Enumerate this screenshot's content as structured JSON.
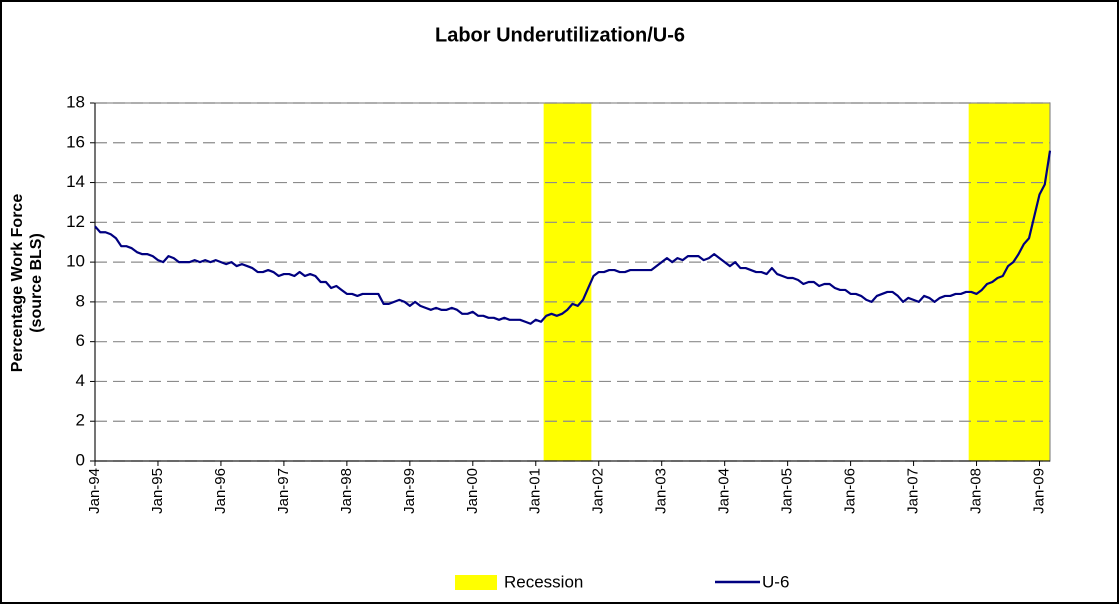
{
  "chart_data": {
    "type": "line",
    "title": "Labor Underutilization/U-6",
    "ylabel": [
      "Percentage Work Force",
      "(source BLS)"
    ],
    "categories": [
      "Jan-94",
      null,
      null,
      null,
      null,
      null,
      null,
      null,
      null,
      null,
      null,
      null,
      "Jan-95",
      null,
      null,
      null,
      null,
      null,
      null,
      null,
      null,
      null,
      null,
      null,
      "Jan-96",
      null,
      null,
      null,
      null,
      null,
      null,
      null,
      null,
      null,
      null,
      null,
      "Jan-97",
      null,
      null,
      null,
      null,
      null,
      null,
      null,
      null,
      null,
      null,
      null,
      "Jan-98",
      null,
      null,
      null,
      null,
      null,
      null,
      null,
      null,
      null,
      null,
      null,
      "Jan-99",
      null,
      null,
      null,
      null,
      null,
      null,
      null,
      null,
      null,
      null,
      null,
      "Jan-00",
      null,
      null,
      null,
      null,
      null,
      null,
      null,
      null,
      null,
      null,
      null,
      "Jan-01",
      null,
      null,
      null,
      null,
      null,
      null,
      null,
      null,
      null,
      null,
      null,
      "Jan-02",
      null,
      null,
      null,
      null,
      null,
      null,
      null,
      null,
      null,
      null,
      null,
      "Jan-03",
      null,
      null,
      null,
      null,
      null,
      null,
      null,
      null,
      null,
      null,
      null,
      "Jan-04",
      null,
      null,
      null,
      null,
      null,
      null,
      null,
      null,
      null,
      null,
      null,
      "Jan-05",
      null,
      null,
      null,
      null,
      null,
      null,
      null,
      null,
      null,
      null,
      null,
      "Jan-06",
      null,
      null,
      null,
      null,
      null,
      null,
      null,
      null,
      null,
      null,
      null,
      "Jan-07",
      null,
      null,
      null,
      null,
      null,
      null,
      null,
      null,
      null,
      null,
      null,
      "Jan-08",
      null,
      null,
      null,
      null,
      null,
      null,
      null,
      null,
      null,
      null,
      null,
      "Jan-09",
      null,
      null
    ],
    "series": [
      {
        "name": "Recession",
        "type": "bar",
        "color": "#ffff00",
        "values": [
          null,
          null,
          null,
          null,
          null,
          null,
          null,
          null,
          null,
          null,
          null,
          null,
          null,
          null,
          null,
          null,
          null,
          null,
          null,
          null,
          null,
          null,
          null,
          null,
          null,
          null,
          null,
          null,
          null,
          null,
          null,
          null,
          null,
          null,
          null,
          null,
          null,
          null,
          null,
          null,
          null,
          null,
          null,
          null,
          null,
          null,
          null,
          null,
          null,
          null,
          null,
          null,
          null,
          null,
          null,
          null,
          null,
          null,
          null,
          null,
          null,
          null,
          null,
          null,
          null,
          null,
          null,
          null,
          null,
          null,
          null,
          null,
          null,
          null,
          null,
          null,
          null,
          null,
          null,
          null,
          null,
          null,
          null,
          null,
          null,
          null,
          18,
          18,
          18,
          18,
          18,
          18,
          18,
          18,
          18,
          null,
          null,
          null,
          null,
          null,
          null,
          null,
          null,
          null,
          null,
          null,
          null,
          null,
          null,
          null,
          null,
          null,
          null,
          null,
          null,
          null,
          null,
          null,
          null,
          null,
          null,
          null,
          null,
          null,
          null,
          null,
          null,
          null,
          null,
          null,
          null,
          null,
          null,
          null,
          null,
          null,
          null,
          null,
          null,
          null,
          null,
          null,
          null,
          null,
          null,
          null,
          null,
          null,
          null,
          null,
          null,
          null,
          null,
          null,
          null,
          null,
          null,
          null,
          null,
          null,
          null,
          null,
          null,
          null,
          null,
          null,
          null,
          18,
          18,
          18,
          18,
          18,
          18,
          18,
          18,
          18,
          18,
          18,
          18,
          18,
          18,
          18,
          18
        ]
      },
      {
        "name": "U-6",
        "type": "line",
        "color": "#000080",
        "values": [
          11.8,
          11.5,
          11.5,
          11.4,
          11.2,
          10.8,
          10.8,
          10.7,
          10.5,
          10.4,
          10.4,
          10.3,
          10.1,
          10.0,
          10.3,
          10.2,
          10.0,
          10.0,
          10.0,
          10.1,
          10.0,
          10.1,
          10.0,
          10.1,
          10.0,
          9.9,
          10.0,
          9.8,
          9.9,
          9.8,
          9.7,
          9.5,
          9.5,
          9.6,
          9.5,
          9.3,
          9.4,
          9.4,
          9.3,
          9.5,
          9.3,
          9.4,
          9.3,
          9.0,
          9.0,
          8.7,
          8.8,
          8.6,
          8.4,
          8.4,
          8.3,
          8.4,
          8.4,
          8.4,
          8.4,
          7.9,
          7.9,
          8.0,
          8.1,
          8.0,
          7.8,
          8.0,
          7.8,
          7.7,
          7.6,
          7.7,
          7.6,
          7.6,
          7.7,
          7.6,
          7.4,
          7.4,
          7.5,
          7.3,
          7.3,
          7.2,
          7.2,
          7.1,
          7.2,
          7.1,
          7.1,
          7.1,
          7.0,
          6.9,
          7.1,
          7.0,
          7.3,
          7.4,
          7.3,
          7.4,
          7.6,
          7.9,
          7.8,
          8.1,
          8.7,
          9.3,
          9.5,
          9.5,
          9.6,
          9.6,
          9.5,
          9.5,
          9.6,
          9.6,
          9.6,
          9.6,
          9.6,
          9.8,
          10.0,
          10.2,
          10.0,
          10.2,
          10.1,
          10.3,
          10.3,
          10.3,
          10.1,
          10.2,
          10.4,
          10.2,
          10.0,
          9.8,
          10.0,
          9.7,
          9.7,
          9.6,
          9.5,
          9.5,
          9.4,
          9.7,
          9.4,
          9.3,
          9.2,
          9.2,
          9.1,
          8.9,
          9.0,
          9.0,
          8.8,
          8.9,
          8.9,
          8.7,
          8.6,
          8.6,
          8.4,
          8.4,
          8.3,
          8.1,
          8.0,
          8.3,
          8.4,
          8.5,
          8.5,
          8.3,
          8.0,
          8.2,
          8.1,
          8.0,
          8.3,
          8.2,
          8.0,
          8.2,
          8.3,
          8.3,
          8.4,
          8.4,
          8.5,
          8.5,
          8.4,
          8.6,
          8.9,
          9.0,
          9.2,
          9.3,
          9.8,
          10.0,
          10.4,
          10.9,
          11.2,
          12.3,
          13.4,
          13.9,
          15.6
        ]
      }
    ],
    "ylim": [
      0,
      18
    ],
    "yticks": [
      0,
      2,
      4,
      6,
      8,
      10,
      12,
      14,
      16,
      18
    ],
    "grid": true,
    "legend": "bottom"
  }
}
